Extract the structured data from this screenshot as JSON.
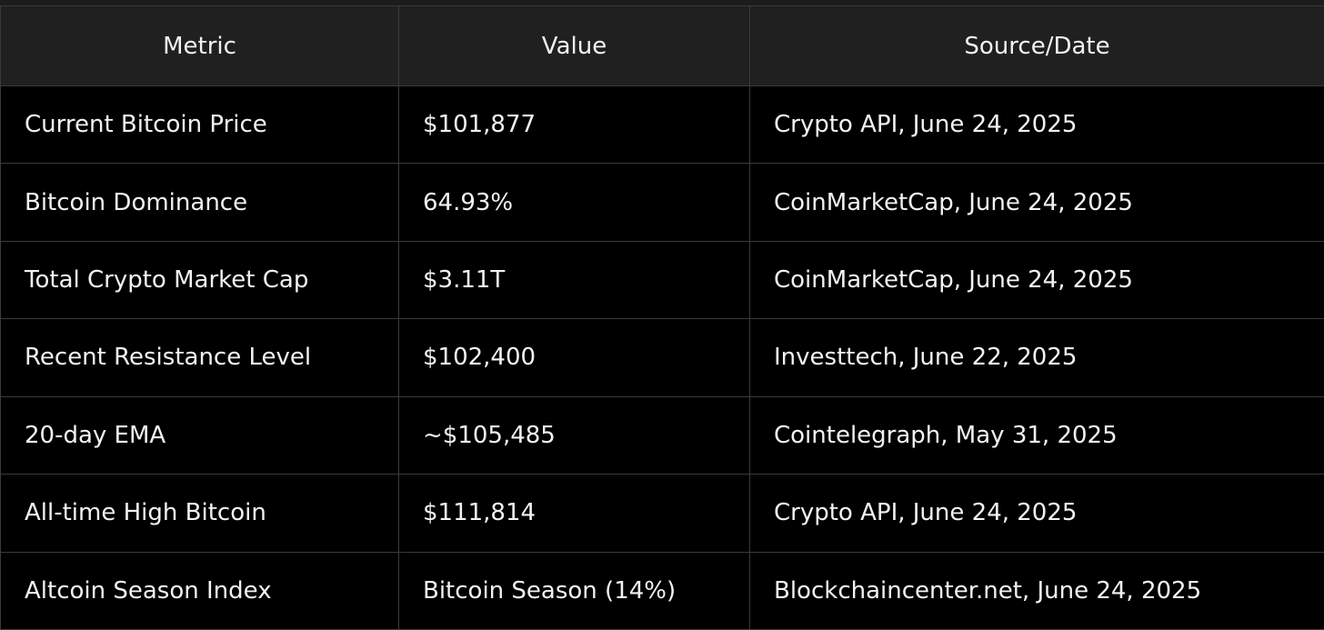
{
  "table": {
    "header": [
      "Metric",
      "Value",
      "Source/Date"
    ],
    "rows": [
      [
        "Current Bitcoin Price",
        "$101,877",
        "Crypto API, June 24, 2025"
      ],
      [
        "Bitcoin Dominance",
        "64.93%",
        "CoinMarketCap, June 24, 2025"
      ],
      [
        "Total Crypto Market Cap",
        "$3.11T",
        "CoinMarketCap, June 24, 2025"
      ],
      [
        "Recent Resistance Level",
        "$102,400",
        "Investtech, June 22, 2025"
      ],
      [
        "20-day EMA",
        "~$105,485",
        "Cointelegraph, May 31, 2025"
      ],
      [
        "All-time High Bitcoin",
        "$111,814",
        "Crypto API, June 24, 2025"
      ],
      [
        "Altcoin Season Index",
        "Bitcoin Season (14%)",
        "Blockchaincenter.net, June 24, 2025"
      ]
    ]
  }
}
